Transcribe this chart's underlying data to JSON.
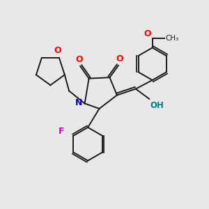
{
  "background_color": "#e8e8e8",
  "bond_color": "#1a1a1a",
  "atom_colors": {
    "O": "#ff0000",
    "N": "#0000cc",
    "F": "#cc00cc",
    "OH": "#008080",
    "C": "#1a1a1a"
  },
  "figure_size": [
    3.0,
    3.0
  ],
  "dpi": 100
}
